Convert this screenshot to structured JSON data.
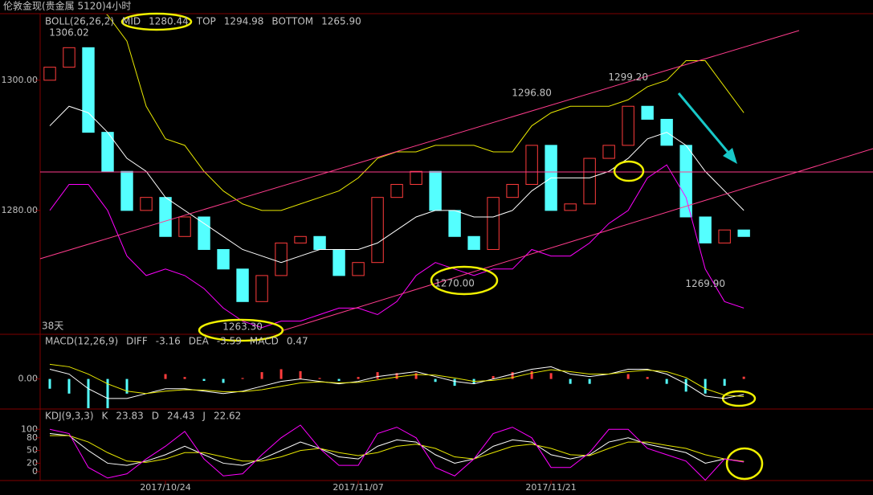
{
  "header": {
    "title": "伦敦金现(贵金属 5120)4小时"
  },
  "chart_data": [
    {
      "type": "candlestick",
      "indicator": "BOLL(26,26,2)",
      "period_label": "38天",
      "up_color": "#ff3c3c",
      "down_color": "#54ffff",
      "open": [
        1300,
        1302,
        1305,
        1292,
        1286,
        1280,
        1282,
        1276,
        1279,
        1274,
        1271,
        1266,
        1270,
        1275,
        1276,
        1274,
        1270,
        1272,
        1282,
        1284,
        1286,
        1280,
        1276,
        1274,
        1282,
        1284,
        1290,
        1280,
        1281,
        1288,
        1290,
        1296,
        1294,
        1290,
        1279,
        1275,
        1277
      ],
      "close": [
        1302,
        1305,
        1292,
        1286,
        1280,
        1282,
        1276,
        1279,
        1274,
        1271,
        1266,
        1270,
        1275,
        1276,
        1274,
        1270,
        1272,
        1282,
        1284,
        1286,
        1280,
        1276,
        1274,
        1282,
        1284,
        1290,
        1280,
        1281,
        1288,
        1290,
        1296,
        1294,
        1290,
        1279,
        1275,
        1277,
        1276
      ],
      "series": [
        {
          "name": "MID",
          "color": "#ffffff",
          "last": 1280.44,
          "values": [
            1293,
            1296,
            1295,
            1292,
            1288,
            1286,
            1282,
            1280,
            1278,
            1276,
            1274,
            1273,
            1272,
            1273,
            1274,
            1274,
            1274,
            1275,
            1277,
            1279,
            1280,
            1280,
            1279,
            1279,
            1280,
            1283,
            1285,
            1285,
            1285,
            1286,
            1288,
            1291,
            1292,
            1290,
            1286,
            1283,
            1280
          ]
        },
        {
          "name": "TOP",
          "color": "#e8e800",
          "last": 1294.98,
          "values": [
            1312,
            1312,
            1312,
            1310,
            1306,
            1296,
            1291,
            1290,
            1286,
            1283,
            1281,
            1280,
            1280,
            1281,
            1282,
            1283,
            1285,
            1288,
            1289,
            1289,
            1290,
            1290,
            1290,
            1289,
            1289,
            1293,
            1295,
            1296,
            1296,
            1296,
            1297,
            1299,
            1300,
            1303,
            1303,
            1299,
            1295
          ]
        },
        {
          "name": "BOTTOM",
          "color": "#ff00ff",
          "last": {
            "value": 1265.9,
            "label": "1265.90"
          },
          "values": [
            1280,
            1284,
            1284,
            1280,
            1273,
            1270,
            1271,
            1270,
            1268,
            1265,
            1263,
            1262,
            1263,
            1263,
            1264,
            1265,
            1265,
            1264,
            1266,
            1270,
            1272,
            1271,
            1270,
            1271,
            1271,
            1274,
            1273,
            1273,
            1275,
            1278,
            1280,
            1285,
            1287,
            1282,
            1271,
            1266,
            1265
          ]
        }
      ],
      "annotations": [
        {
          "x": 1,
          "value": 1306.02,
          "label": "1306.02",
          "color": "#ff4040",
          "position": "above"
        },
        {
          "x": 25,
          "value": 1296.8,
          "label": "1296.80",
          "color": "#ff4040",
          "position": "above"
        },
        {
          "x": 30,
          "value": 1299.2,
          "label": "1299.20",
          "color": "#ff4040",
          "position": "above"
        },
        {
          "x": 21,
          "value": 1270,
          "label": "1270.00",
          "color": "#54ffff",
          "position": "below"
        },
        {
          "x": 10,
          "value": 1263.3,
          "label": "1263.30",
          "color": "#54ffff",
          "position": "below"
        },
        {
          "x": 34,
          "value": 1269.9,
          "label": "1269.90",
          "color": "#54ffff",
          "position": "below"
        }
      ],
      "xlim": [
        -0.5,
        42.7
      ],
      "ylim": [
        1261.1,
        1310.1
      ],
      "yticks": [
        {
          "value": 1280,
          "label": "1280.00"
        },
        {
          "value": 1300,
          "label": "1300.00"
        }
      ]
    },
    {
      "type": "macd",
      "indicator": "MACD(12,26,9)",
      "up_color": "#ff3c3c",
      "down_color": "#54ffff",
      "series": [
        {
          "name": "DIFF",
          "color": "#ffffff",
          "last": -3.16,
          "values": [
            2,
            1,
            -2,
            -4,
            -4,
            -3,
            -2,
            -2,
            -2.5,
            -3,
            -2.5,
            -1.5,
            -0.5,
            0,
            -0.5,
            -1,
            -0.5,
            0.5,
            1,
            1.5,
            0.5,
            -0.5,
            -1,
            0,
            1,
            2,
            2.5,
            1,
            0.5,
            1,
            2,
            2,
            1,
            -1,
            -3.5,
            -4,
            -3.2
          ]
        },
        {
          "name": "DEA",
          "color": "#e8e800",
          "last": -3.59,
          "values": [
            3,
            2.5,
            1,
            -1,
            -2.5,
            -3,
            -2.5,
            -2.2,
            -2.3,
            -2.6,
            -2.6,
            -2.2,
            -1.5,
            -0.8,
            -0.6,
            -0.8,
            -0.7,
            -0.2,
            0.4,
            0.9,
            0.8,
            0.2,
            -0.5,
            -0.3,
            0.3,
            1.2,
            1.9,
            1.5,
            1,
            1,
            1.5,
            1.8,
            1.5,
            0.3,
            -2,
            -3.3,
            -3.6
          ]
        }
      ],
      "histogram": {
        "name": "MACD",
        "color": "#ff00ff",
        "last": 0.47,
        "values": [
          -2,
          -3,
          -6,
          -6,
          -3,
          0,
          1,
          0.4,
          -0.4,
          -0.8,
          0.2,
          1.4,
          2,
          1.6,
          0.2,
          -0.4,
          0.4,
          1.4,
          1.2,
          1.2,
          -0.6,
          -1.4,
          -1,
          0.6,
          1.4,
          1.6,
          1.2,
          -1,
          -1,
          0,
          1,
          0.4,
          -1,
          -2.6,
          -3,
          -1.4,
          0.47
        ]
      },
      "xlim": [
        -0.5,
        42.7
      ],
      "ylim": [
        -6,
        9
      ],
      "yticks": [
        {
          "value": 0,
          "label": "0.00"
        }
      ]
    },
    {
      "type": "kdj",
      "indicator": "KDJ(9,3,3)",
      "series": [
        {
          "name": "K",
          "color": "#ffffff",
          "last": 23.83,
          "values": [
            90,
            85,
            50,
            20,
            15,
            25,
            40,
            60,
            40,
            20,
            15,
            30,
            50,
            70,
            55,
            35,
            30,
            60,
            75,
            70,
            40,
            20,
            30,
            60,
            75,
            70,
            40,
            30,
            40,
            70,
            80,
            65,
            55,
            45,
            20,
            30,
            23.83
          ]
        },
        {
          "name": "D",
          "color": "#e8e800",
          "last": 24.43,
          "values": [
            85,
            85,
            70,
            45,
            25,
            22,
            30,
            45,
            45,
            35,
            25,
            25,
            35,
            50,
            55,
            45,
            38,
            45,
            60,
            65,
            55,
            35,
            30,
            45,
            60,
            65,
            55,
            40,
            38,
            55,
            70,
            70,
            62,
            55,
            40,
            30,
            24.43
          ]
        },
        {
          "name": "J",
          "color": "#ff00ff",
          "last": 22.62,
          "values": [
            100,
            90,
            10,
            -15,
            -5,
            30,
            60,
            95,
            30,
            -10,
            -5,
            40,
            80,
            110,
            55,
            15,
            15,
            90,
            105,
            80,
            10,
            -10,
            30,
            90,
            105,
            80,
            10,
            10,
            45,
            100,
            100,
            55,
            40,
            25,
            -20,
            30,
            22.62
          ]
        }
      ],
      "xlim": [
        -0.5,
        42.7
      ],
      "ylim": [
        -19,
        146
      ],
      "yticks": [
        0,
        20,
        50,
        80,
        100
      ],
      "xticks": [
        {
          "value": 6,
          "label": "2017/10/24"
        },
        {
          "value": 16,
          "label": "2017/11/07"
        },
        {
          "value": 26,
          "label": "2017/11/21"
        }
      ]
    }
  ]
}
